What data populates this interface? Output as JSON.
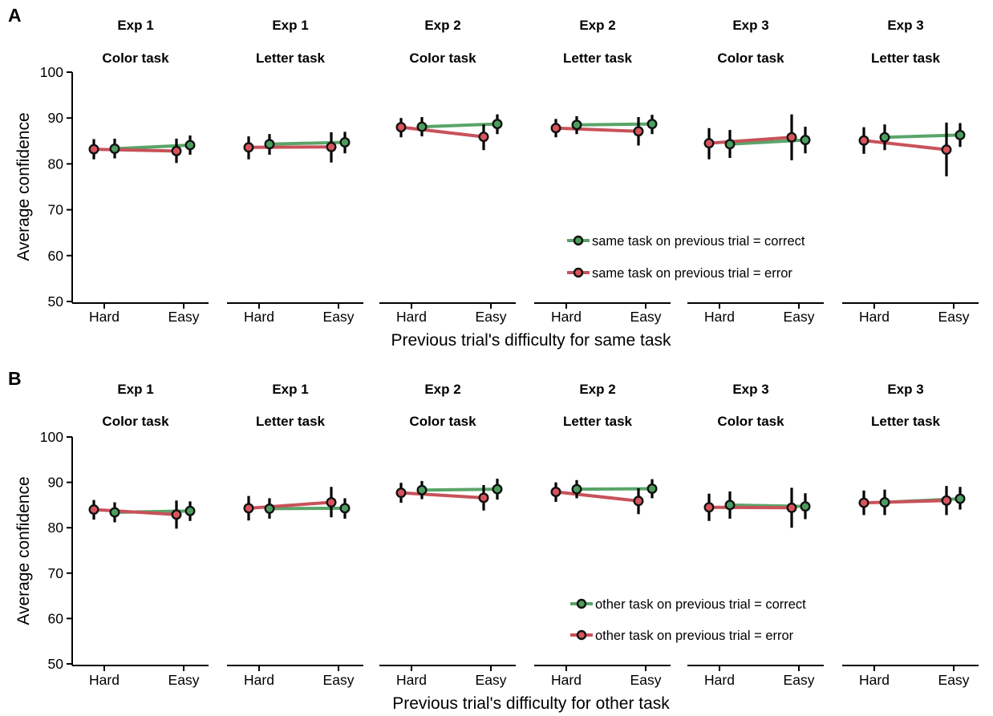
{
  "colors": {
    "correct": "#5aa469",
    "error": "#c8525a",
    "correct_marker": "#4c9e5e",
    "error_marker": "#d9545c"
  },
  "y_ticks": [
    "100",
    "90",
    "80",
    "70",
    "60",
    "50"
  ],
  "x_ticks": [
    "Hard",
    "Easy"
  ],
  "ylabel": "Average confidence",
  "chart_data": [
    {
      "type": "line",
      "panel": "A",
      "xlabel": "Previous trial's difficulty for same task",
      "ylabel": "Average confidence",
      "ylim": [
        50,
        100
      ],
      "categories": [
        "Hard",
        "Easy"
      ],
      "legend": {
        "placement": "lower-right",
        "correct": "same task on previous trial = correct",
        "error": "same task on previous trial = error"
      },
      "subplots": [
        {
          "exp": "Exp 1",
          "task": "Color task",
          "series": [
            {
              "name": "same task on previous trial = correct",
              "values": [
                83.3,
                84.1
              ],
              "err": [
                [
                  81.2,
                  85.5
                ],
                [
                  82.0,
                  86.2
                ]
              ]
            },
            {
              "name": "same task on previous trial = error",
              "values": [
                83.2,
                82.8
              ],
              "err": [
                [
                  81.0,
                  85.4
                ],
                [
                  80.2,
                  85.5
                ]
              ]
            }
          ]
        },
        {
          "exp": "Exp 1",
          "task": "Letter task",
          "series": [
            {
              "name": "same task on previous trial = correct",
              "values": [
                84.3,
                84.7
              ],
              "err": [
                [
                  82.0,
                  86.5
                ],
                [
                  82.3,
                  87.0
                ]
              ]
            },
            {
              "name": "same task on previous trial = error",
              "values": [
                83.6,
                83.7
              ],
              "err": [
                [
                  81.0,
                  86.0
                ],
                [
                  80.3,
                  86.9
                ]
              ]
            }
          ]
        },
        {
          "exp": "Exp 2",
          "task": "Color task",
          "series": [
            {
              "name": "same task on previous trial = correct",
              "values": [
                88.1,
                88.7
              ],
              "err": [
                [
                  86.0,
                  90.2
                ],
                [
                  86.5,
                  90.8
                ]
              ]
            },
            {
              "name": "same task on previous trial = error",
              "values": [
                88.0,
                85.9
              ],
              "err": [
                [
                  85.8,
                  90.0
                ],
                [
                  83.0,
                  88.6
                ]
              ]
            }
          ]
        },
        {
          "exp": "Exp 2",
          "task": "Letter task",
          "series": [
            {
              "name": "same task on previous trial = correct",
              "values": [
                88.5,
                88.7
              ],
              "err": [
                [
                  86.5,
                  90.4
                ],
                [
                  86.5,
                  90.7
                ]
              ]
            },
            {
              "name": "same task on previous trial = error",
              "values": [
                87.8,
                87.1
              ],
              "err": [
                [
                  85.8,
                  89.8
                ],
                [
                  84.0,
                  90.2
                ]
              ]
            }
          ]
        },
        {
          "exp": "Exp 3",
          "task": "Color task",
          "series": [
            {
              "name": "same task on previous trial = correct",
              "values": [
                84.3,
                85.2
              ],
              "err": [
                [
                  81.3,
                  87.4
                ],
                [
                  82.3,
                  88.1
                ]
              ]
            },
            {
              "name": "same task on previous trial = error",
              "values": [
                84.5,
                85.8
              ],
              "err": [
                [
                  81.0,
                  87.8
                ],
                [
                  80.8,
                  90.8
                ]
              ]
            }
          ]
        },
        {
          "exp": "Exp 3",
          "task": "Letter task",
          "series": [
            {
              "name": "same task on previous trial = correct",
              "values": [
                85.8,
                86.3
              ],
              "err": [
                [
                  83.0,
                  88.6
                ],
                [
                  83.7,
                  88.9
                ]
              ]
            },
            {
              "name": "same task on previous trial = error",
              "values": [
                85.1,
                83.1
              ],
              "err": [
                [
                  82.2,
                  88.0
                ],
                [
                  77.3,
                  89.0
                ]
              ]
            }
          ]
        }
      ]
    },
    {
      "type": "line",
      "panel": "B",
      "xlabel": "Previous trial's difficulty for other task",
      "ylabel": "Average confidence",
      "ylim": [
        50,
        100
      ],
      "categories": [
        "Hard",
        "Easy"
      ],
      "legend": {
        "placement": "lower-right",
        "correct": "other task on previous trial = correct",
        "error": "other task on previous trial = error"
      },
      "subplots": [
        {
          "exp": "Exp 1",
          "task": "Color task",
          "series": [
            {
              "name": "other task on previous trial = correct",
              "values": [
                83.4,
                83.7
              ],
              "err": [
                [
                  81.2,
                  85.6
                ],
                [
                  81.5,
                  85.8
                ]
              ]
            },
            {
              "name": "other task on previous trial = error",
              "values": [
                84.0,
                82.9
              ],
              "err": [
                [
                  81.8,
                  86.1
                ],
                [
                  79.8,
                  86.0
                ]
              ]
            }
          ]
        },
        {
          "exp": "Exp 1",
          "task": "Letter task",
          "series": [
            {
              "name": "other task on previous trial = correct",
              "values": [
                84.2,
                84.3
              ],
              "err": [
                [
                  82.0,
                  86.5
                ],
                [
                  82.0,
                  86.5
                ]
              ]
            },
            {
              "name": "other task on previous trial = error",
              "values": [
                84.3,
                85.6
              ],
              "err": [
                [
                  81.6,
                  87.0
                ],
                [
                  82.3,
                  89.0
                ]
              ]
            }
          ]
        },
        {
          "exp": "Exp 2",
          "task": "Color task",
          "series": [
            {
              "name": "other task on previous trial = correct",
              "values": [
                88.3,
                88.5
              ],
              "err": [
                [
                  86.3,
                  90.3
                ],
                [
                  86.2,
                  90.8
                ]
              ]
            },
            {
              "name": "other task on previous trial = error",
              "values": [
                87.7,
                86.6
              ],
              "err": [
                [
                  85.5,
                  89.9
                ],
                [
                  83.8,
                  89.4
                ]
              ]
            }
          ]
        },
        {
          "exp": "Exp 2",
          "task": "Letter task",
          "series": [
            {
              "name": "other task on previous trial = correct",
              "values": [
                88.5,
                88.6
              ],
              "err": [
                [
                  86.5,
                  90.5
                ],
                [
                  86.5,
                  90.7
                ]
              ]
            },
            {
              "name": "other task on previous trial = error",
              "values": [
                87.9,
                85.9
              ],
              "err": [
                [
                  85.7,
                  90.0
                ],
                [
                  83.0,
                  88.7
                ]
              ]
            }
          ]
        },
        {
          "exp": "Exp 3",
          "task": "Color task",
          "series": [
            {
              "name": "other task on previous trial = correct",
              "values": [
                85.0,
                84.7
              ],
              "err": [
                [
                  82.0,
                  88.0
                ],
                [
                  81.9,
                  87.6
                ]
              ]
            },
            {
              "name": "other task on previous trial = error",
              "values": [
                84.5,
                84.4
              ],
              "err": [
                [
                  81.5,
                  87.5
                ],
                [
                  80.0,
                  88.8
                ]
              ]
            }
          ]
        },
        {
          "exp": "Exp 3",
          "task": "Letter task",
          "series": [
            {
              "name": "other task on previous trial = correct",
              "values": [
                85.6,
                86.4
              ],
              "err": [
                [
                  82.8,
                  88.4
                ],
                [
                  84.0,
                  89.0
                ]
              ]
            },
            {
              "name": "other task on previous trial = error",
              "values": [
                85.5,
                86.0
              ],
              "err": [
                [
                  82.8,
                  88.2
                ],
                [
                  82.8,
                  89.2
                ]
              ]
            }
          ]
        }
      ]
    }
  ]
}
